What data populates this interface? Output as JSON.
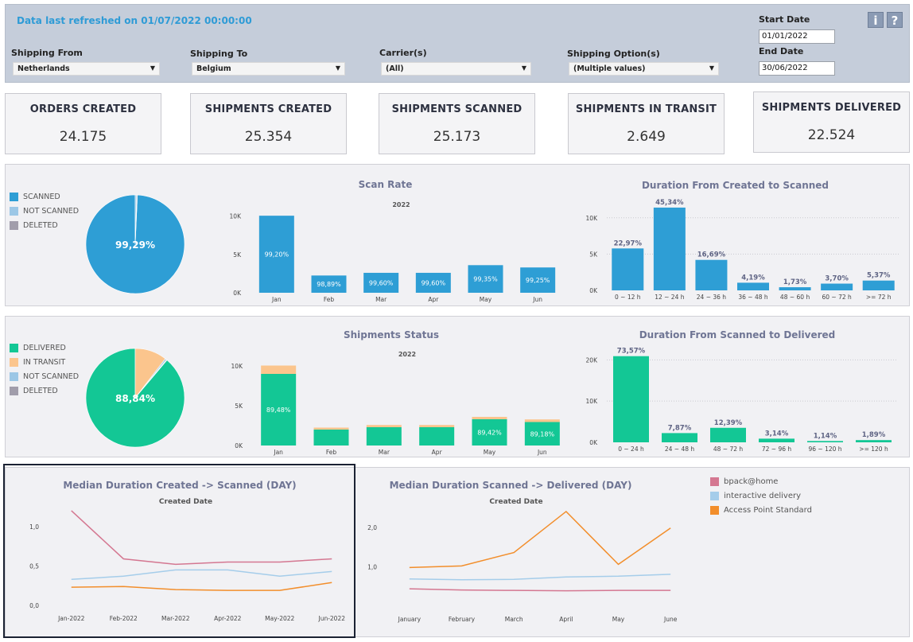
{
  "header": {
    "refresh_text": "Data last refreshed on 01/07/2022 00:00:00",
    "filters": [
      {
        "label": "Shipping From",
        "value": "Netherlands"
      },
      {
        "label": "Shipping To",
        "value": "Belgium"
      },
      {
        "label": "Carrier(s)",
        "value": "(All)"
      },
      {
        "label": "Shipping Option(s)",
        "value": "(Multiple values)"
      }
    ],
    "start_date_label": "Start Date",
    "start_date": "01/01/2022",
    "end_date_label": "End Date",
    "end_date": "30/06/2022",
    "info_icon": "i",
    "help_icon": "?"
  },
  "kpis": [
    {
      "title": "ORDERS CREATED",
      "value": "24.175"
    },
    {
      "title": "SHIPMENTS CREATED",
      "value": "25.354"
    },
    {
      "title": "SHIPMENTS SCANNED",
      "value": "25.173"
    },
    {
      "title": "SHIPMENTS IN TRANSIT",
      "value": "2.649"
    },
    {
      "title": "SHIPMENTS DELIVERED",
      "value": "22.524"
    }
  ],
  "colors": {
    "scanned": "#2e9ed5",
    "not_scanned": "#9cc7e6",
    "deleted": "#a19dab",
    "delivered": "#13c795",
    "in_transit": "#fbc58d",
    "bpack": "#d47791",
    "interactive": "#a5cdea",
    "access_point": "#f28e2b",
    "title": "#6f7594"
  },
  "row1": {
    "legend": [
      "SCANNED",
      "NOT SCANNED",
      "DELETED"
    ],
    "pie_label": "99,29%",
    "scan_title": "Scan Rate",
    "scan_sub": "2022",
    "dur_title": "Duration From Created to Scanned"
  },
  "row2": {
    "legend": [
      "DELIVERED",
      "IN TRANSIT",
      "NOT SCANNED",
      "DELETED"
    ],
    "pie_label": "88,84%",
    "status_title": "Shipments Status",
    "status_sub": "2022",
    "dur_title": "Duration From Scanned to Delivered"
  },
  "row3": {
    "left_title": "Median Duration Created -> Scanned (DAY)",
    "left_sub": "Created Date",
    "right_title": "Median Duration Scanned -> Delivered (DAY)",
    "right_sub": "Created Date",
    "legend": [
      "bpack@home",
      "interactive delivery",
      "Access Point Standard"
    ]
  },
  "chart_data": [
    {
      "type": "pie",
      "id": "scan-pie",
      "categories": [
        "SCANNED",
        "NOT SCANNED",
        "DELETED"
      ],
      "values": [
        99.29,
        0.5,
        0.21
      ],
      "label": "99,29%"
    },
    {
      "type": "bar",
      "id": "scan-rate",
      "title": "Scan Rate",
      "subtitle": "2022",
      "categories": [
        "Jan",
        "Feb",
        "Mar",
        "Apr",
        "May",
        "Jun"
      ],
      "values": [
        10050,
        2250,
        2600,
        2600,
        3600,
        3300
      ],
      "labels": [
        "99,20%",
        "98,89%",
        "99,60%",
        "99,60%",
        "99,35%",
        "99,25%"
      ],
      "yticks": [
        "0K",
        "5K",
        "10K"
      ],
      "ylim": [
        0,
        11000
      ]
    },
    {
      "type": "bar",
      "id": "dur-created-scanned",
      "title": "Duration From Created to Scanned",
      "categories": [
        "0 ~ 12 h",
        "12 ~ 24 h",
        "24 ~ 36 h",
        "36 ~ 48 h",
        "48 ~ 60 h",
        "60 ~ 72 h",
        ">= 72 h"
      ],
      "values": [
        5780,
        11410,
        4200,
        1055,
        435,
        930,
        1350
      ],
      "labels": [
        "22,97%",
        "45,34%",
        "16,69%",
        "4,19%",
        "1,73%",
        "3,70%",
        "5,37%"
      ],
      "yticks": [
        "0K",
        "5K",
        "10K"
      ],
      "ylim": [
        0,
        12500
      ]
    },
    {
      "type": "pie",
      "id": "status-pie",
      "categories": [
        "DELIVERED",
        "IN TRANSIT",
        "NOT SCANNED",
        "DELETED"
      ],
      "values": [
        88.84,
        10.45,
        0.5,
        0.21
      ],
      "label": "88,84%"
    },
    {
      "type": "bar",
      "id": "shipments-status",
      "title": "Shipments Status",
      "subtitle": "2022",
      "categories": [
        "Jan",
        "Feb",
        "Mar",
        "Apr",
        "May",
        "Jun"
      ],
      "series": [
        {
          "name": "DELIVERED",
          "values": [
            9000,
            2000,
            2300,
            2300,
            3300,
            2950
          ]
        },
        {
          "name": "IN TRANSIT",
          "values": [
            1050,
            250,
            280,
            280,
            300,
            330
          ]
        }
      ],
      "labels": [
        "89,48%",
        "",
        "",
        "",
        "89,42%",
        "89,18%"
      ],
      "yticks": [
        "0K",
        "5K",
        "10K"
      ],
      "ylim": [
        0,
        11000
      ]
    },
    {
      "type": "bar",
      "id": "dur-scanned-delivered",
      "title": "Duration From Scanned to Delivered",
      "categories": [
        "0 ~ 24 h",
        "24 ~ 48 h",
        "48 ~ 72 h",
        "72 ~ 96 h",
        "96 ~ 120 h",
        ">= 120 h"
      ],
      "values": [
        20900,
        2240,
        3520,
        890,
        320,
        540
      ],
      "labels": [
        "73,57%",
        "7,87%",
        "12,39%",
        "3,14%",
        "1,14%",
        "1,89%"
      ],
      "yticks": [
        "0K",
        "10K",
        "20K"
      ],
      "ylim": [
        0,
        22000
      ]
    },
    {
      "type": "line",
      "id": "median-created-scanned",
      "title": "Median Duration Created -> Scanned (DAY)",
      "subtitle": "Created Date",
      "x": [
        "Jan-2022",
        "Feb-2022",
        "Mar-2022",
        "Apr-2022",
        "May-2022",
        "Jun-2022"
      ],
      "yticks": [
        "0,0",
        "0,5",
        "1,0"
      ],
      "ylim": [
        0,
        1.25
      ],
      "series": [
        {
          "name": "bpack@home",
          "values": [
            1.2,
            0.59,
            0.52,
            0.55,
            0.55,
            0.59
          ]
        },
        {
          "name": "interactive delivery",
          "values": [
            0.33,
            0.37,
            0.45,
            0.45,
            0.37,
            0.43
          ]
        },
        {
          "name": "Access Point Standard",
          "values": [
            0.23,
            0.24,
            0.2,
            0.19,
            0.19,
            0.29
          ]
        }
      ]
    },
    {
      "type": "line",
      "id": "median-scanned-delivered",
      "title": "Median Duration Scanned -> Delivered (DAY)",
      "subtitle": "Created Date",
      "x": [
        "January",
        "February",
        "March",
        "April",
        "May",
        "June"
      ],
      "yticks": [
        "1,0",
        "2,0"
      ],
      "ylim": [
        0,
        2.5
      ],
      "series": [
        {
          "name": "bpack@home",
          "values": [
            0.44,
            0.41,
            0.4,
            0.39,
            0.4,
            0.4
          ]
        },
        {
          "name": "interactive delivery",
          "values": [
            0.69,
            0.67,
            0.68,
            0.74,
            0.76,
            0.81
          ]
        },
        {
          "name": "Access Point Standard",
          "values": [
            0.98,
            1.02,
            1.36,
            2.4,
            1.06,
            1.98
          ]
        }
      ]
    }
  ]
}
